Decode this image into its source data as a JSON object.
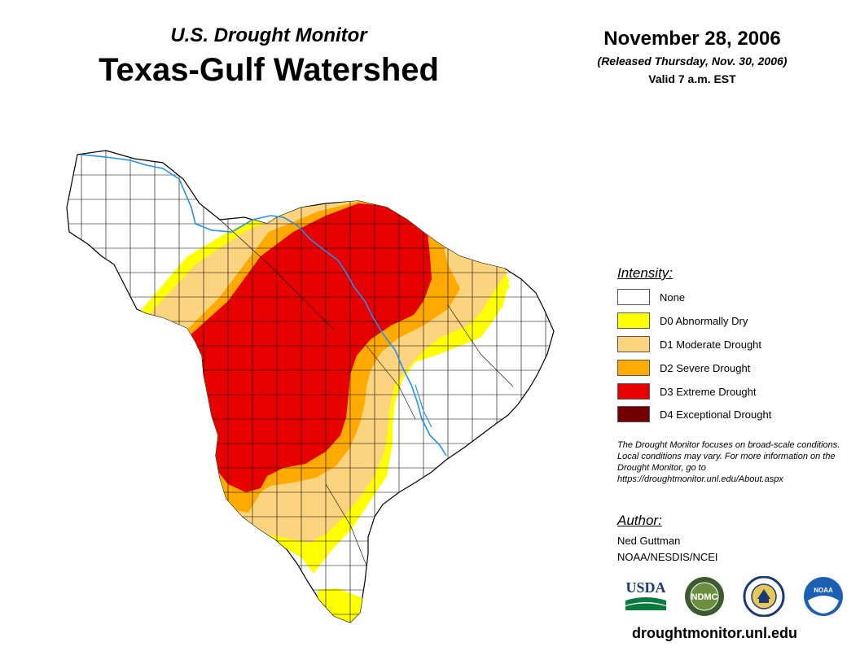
{
  "header": {
    "subtitle": "U.S. Drought Monitor",
    "title": "Texas-Gulf Watershed",
    "date": "November 28, 2006",
    "released": "(Released Thursday, Nov. 30, 2006)",
    "valid": "Valid 7 a.m. EST"
  },
  "legend": {
    "title": "Intensity:",
    "items": [
      {
        "label": "None",
        "color": "#ffffff"
      },
      {
        "label": "D0 Abnormally Dry",
        "color": "#ffff00"
      },
      {
        "label": "D1 Moderate Drought",
        "color": "#fcd37f"
      },
      {
        "label": "D2 Severe Drought",
        "color": "#ffaa00"
      },
      {
        "label": "D3 Extreme Drought",
        "color": "#e60000"
      },
      {
        "label": "D4 Exceptional Drought",
        "color": "#730000"
      }
    ]
  },
  "note": "The Drought Monitor focuses on broad-scale conditions. Local conditions may vary. For more information on the Drought Monitor, go to https://droughtmonitor.unl.edu/About.aspx",
  "author": {
    "heading": "Author:",
    "name": "Ned Guttman",
    "org": "NOAA/NESDIS/NCEI"
  },
  "logos": {
    "usda": "USDA",
    "ndmc": "NDMC",
    "noaa": "NOAA"
  },
  "footer_url": "droughtmonitor.unl.edu",
  "colors": {
    "river": "#1e90ff",
    "county_line": "#000000"
  }
}
